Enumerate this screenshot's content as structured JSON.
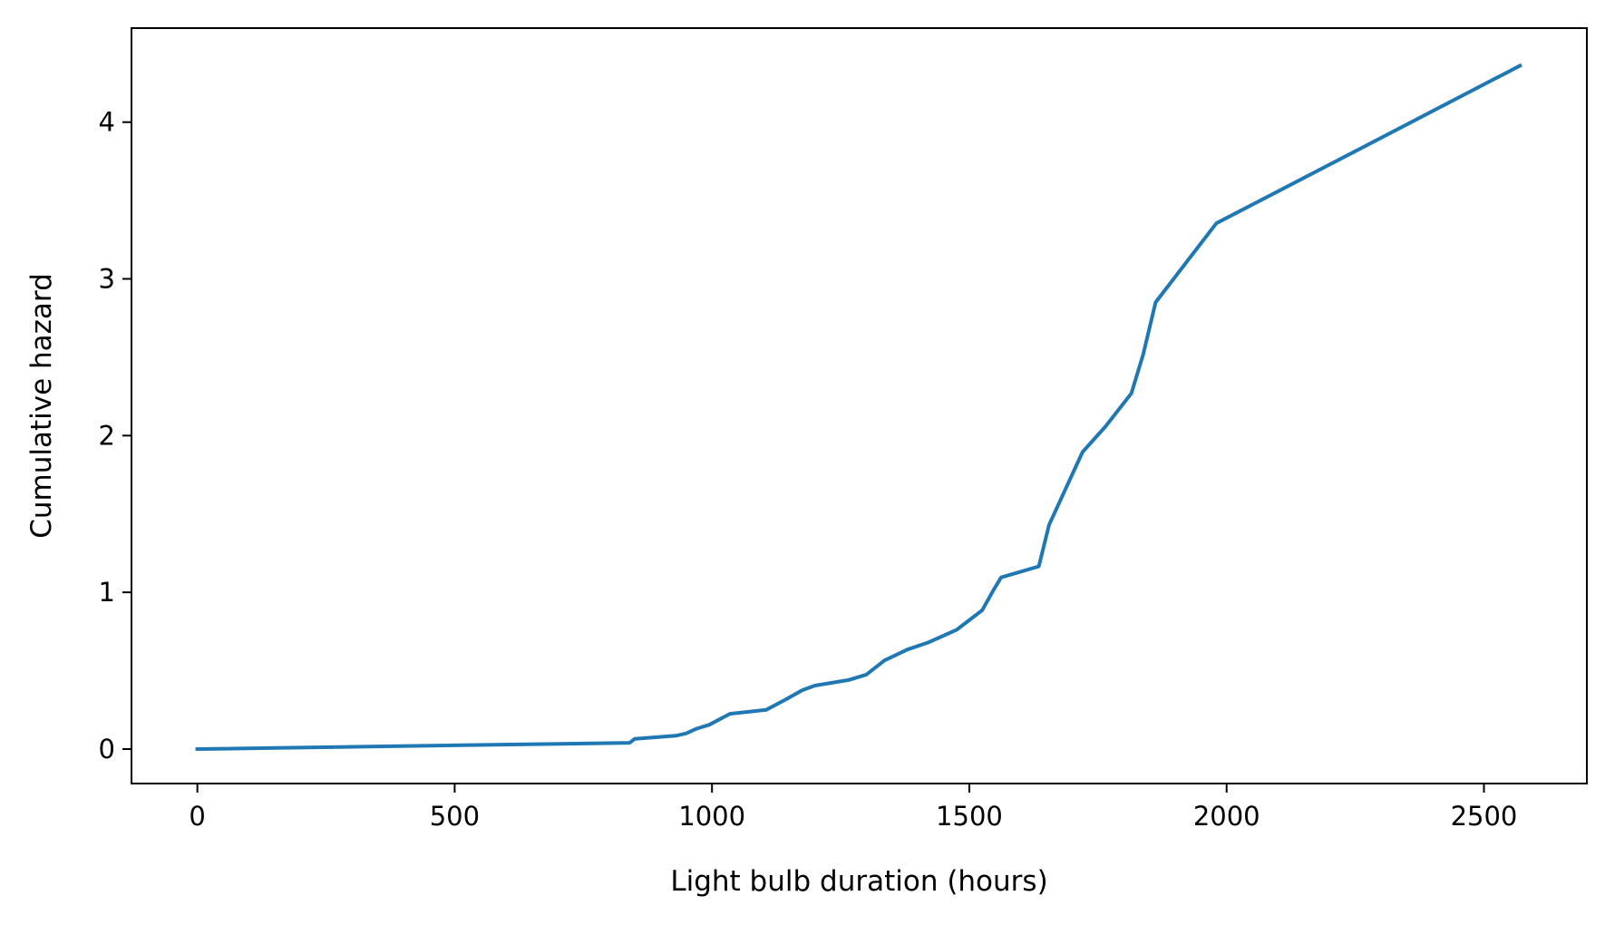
{
  "chart_data": {
    "type": "line",
    "title": "",
    "xlabel": "Light bulb duration (hours)",
    "ylabel": "Cumulative hazard",
    "xlim": [
      -128,
      2700
    ],
    "ylim": [
      -0.22,
      4.6
    ],
    "xticks": [
      0,
      500,
      1000,
      1500,
      2000,
      2500
    ],
    "yticks": [
      0,
      1,
      2,
      3,
      4
    ],
    "grid": false,
    "series": [
      {
        "name": "Cumulative hazard",
        "color": "#1f77b4",
        "x": [
          0,
          840,
          850,
          930,
          950,
          970,
          995,
          1035,
          1105,
          1140,
          1175,
          1200,
          1265,
          1300,
          1335,
          1380,
          1420,
          1475,
          1525,
          1548,
          1562,
          1635,
          1655,
          1720,
          1765,
          1815,
          1838,
          1862,
          1980,
          2570
        ],
        "y": [
          0.0,
          0.04,
          0.065,
          0.085,
          0.1,
          0.13,
          0.155,
          0.225,
          0.25,
          0.31,
          0.375,
          0.405,
          0.44,
          0.475,
          0.565,
          0.635,
          0.68,
          0.76,
          0.885,
          1.02,
          1.095,
          1.165,
          1.43,
          1.895,
          2.06,
          2.27,
          2.52,
          2.85,
          3.355,
          4.36
        ]
      }
    ]
  }
}
